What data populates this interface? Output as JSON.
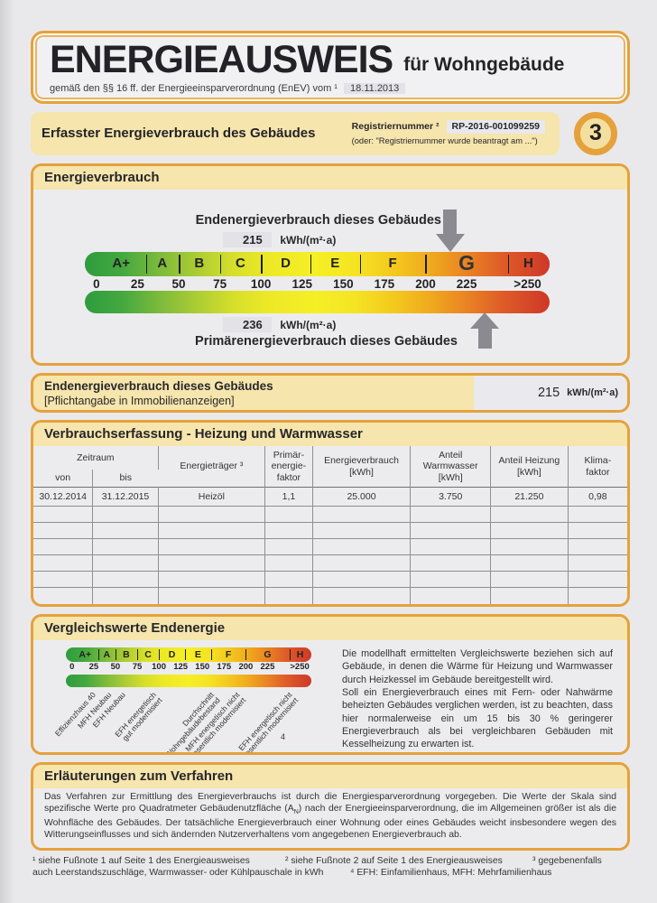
{
  "header": {
    "title": "ENERGIEAUSWEIS",
    "title_suffix": "für Wohngebäude",
    "law_line": "gemäß den §§ 16 ff. der Energieeinsparverordnung (EnEV) vom ¹",
    "law_date": "18.11.2013"
  },
  "banner": {
    "title": "Erfasster Energieverbrauch des Gebäudes",
    "registry_label": "Registriernummer ²",
    "registry_value": "RP-2016-001099259",
    "registry_alt": "(oder: \"Registriernummer wurde beantragt am ...\")",
    "page_number": "3"
  },
  "energy": {
    "section_title": "Energieverbrauch"
  },
  "chart_data": {
    "type": "scale",
    "title": "Energieverbrauch",
    "bands": [
      {
        "label": "A+",
        "from": 0,
        "to": 30
      },
      {
        "label": "A",
        "from": 30,
        "to": 50
      },
      {
        "label": "B",
        "from": 50,
        "to": 75
      },
      {
        "label": "C",
        "from": 75,
        "to": 100
      },
      {
        "label": "D",
        "from": 100,
        "to": 130
      },
      {
        "label": "E",
        "from": 130,
        "to": 160
      },
      {
        "label": "F",
        "from": 160,
        "to": 200
      },
      {
        "label": "G",
        "from": 200,
        "to": 250
      },
      {
        "label": "H",
        "from": 250,
        "to": 275
      }
    ],
    "ticks": [
      "0",
      "25",
      "50",
      "75",
      "100",
      "125",
      "150",
      "175",
      "200",
      "225",
      ">250"
    ],
    "markers": [
      {
        "label": "Endenergieverbrauch dieses Gebäudes",
        "value": 215,
        "unit": "kWh/(m²·a)",
        "arrow": "down"
      },
      {
        "label": "Primärenergieverbrauch dieses Gebäudes",
        "value": 236,
        "unit": "kWh/(m²·a)",
        "arrow": "up"
      }
    ],
    "comparison_labels": [
      {
        "text": "Effizienzhaus 40",
        "value": 22
      },
      {
        "text": "MFH Neubau",
        "value": 40
      },
      {
        "text": "EFH Neubau",
        "value": 56
      },
      {
        "text": "EFH energetisch\ngut modernisiert",
        "value": 92
      },
      {
        "text": "Durchschnitt\nWohngebäudebestand",
        "value": 158
      },
      {
        "text": "MFH energetisch nicht\nwesentlich modernisiert",
        "value": 188
      },
      {
        "text": "EFH energetisch nicht\nwesentlich modernisiert",
        "value": 248
      }
    ]
  },
  "mandatory": {
    "line1": "Endenergieverbrauch dieses Gebäudes",
    "line2": "[Pflichtangabe in Immobilienanzeigen]",
    "value": "215",
    "unit": "kWh/(m²·a)"
  },
  "consumption_table": {
    "section_title": "Verbrauchserfassung - Heizung und Warmwasser",
    "header": {
      "zeitraum": "Zeitraum",
      "von": "von",
      "bis": "bis",
      "cols": [
        "Energieträger ³",
        "Primär-\nenergie-\nfaktor",
        "Energieverbrauch\n[kWh]",
        "Anteil\nWarmwasser\n[kWh]",
        "Anteil Heizung\n[kWh]",
        "Klima-\nfaktor"
      ]
    },
    "rows": [
      [
        "30.12.2014",
        "31.12.2015",
        "Heizöl",
        "1,1",
        "25.000",
        "3.750",
        "21.250",
        "0,98"
      ],
      [
        "",
        "",
        "",
        "",
        "",
        "",
        "",
        ""
      ],
      [
        "",
        "",
        "",
        "",
        "",
        "",
        "",
        ""
      ],
      [
        "",
        "",
        "",
        "",
        "",
        "",
        "",
        ""
      ],
      [
        "",
        "",
        "",
        "",
        "",
        "",
        "",
        ""
      ],
      [
        "",
        "",
        "",
        "",
        "",
        "",
        "",
        ""
      ],
      [
        "",
        "",
        "",
        "",
        "",
        "",
        "",
        ""
      ]
    ]
  },
  "comparison": {
    "section_title": "Vergleichswerte Endenergie",
    "footnote_marker": "4",
    "text1": "Die modellhaft ermittelten Vergleichswerte beziehen sich auf Gebäude, in denen die Wärme für Heizung und Warmwasser durch Heizkessel im Gebäude bereitgestellt wird.",
    "text2": "Soll ein Energieverbrauch eines mit Fern- oder Nahwärme beheizten Gebäudes verglichen werden, ist zu beachten, dass hier normalerweise ein um 15 bis 30 % geringerer Energieverbrauch als bei vergleichbaren Gebäuden mit Kesselheizung zu erwarten ist."
  },
  "explanation": {
    "section_title": "Erläuterungen zum Verfahren",
    "text_a": "Das Verfahren zur Ermittlung des Energieverbrauchs ist durch die Energiesparverordnung vorgegeben. Die Werte der Skala sind spezifische Werte pro Quadratmeter Gebäudenutzfläche (A",
    "text_sub": "N",
    "text_b": ") nach der Energieeinsparverordnung, die im Allgemeinen größer ist als die Wohnfläche des Gebäudes. Der tatsächliche Energieverbrauch einer Wohnung oder eines Gebäudes weicht insbesondere wegen des Witterungseinflusses und sich ändernden Nutzerverhaltens vom angegebenen Energieverbrauch ab."
  },
  "footnotes": {
    "fn1": "¹ siehe Fußnote 1 auf Seite 1 des Energieausweises",
    "fn2": "² siehe Fußnote 2 auf Seite 1 des Energieausweises",
    "fn3": "³ gegebenenfalls",
    "fn1b": "auch Leerstandszuschläge, Warmwasser- oder Kühlpauschale in kWh",
    "fn4": "⁴ EFH: Einfamilienhaus, MFH: Mehrfamilienhaus"
  }
}
